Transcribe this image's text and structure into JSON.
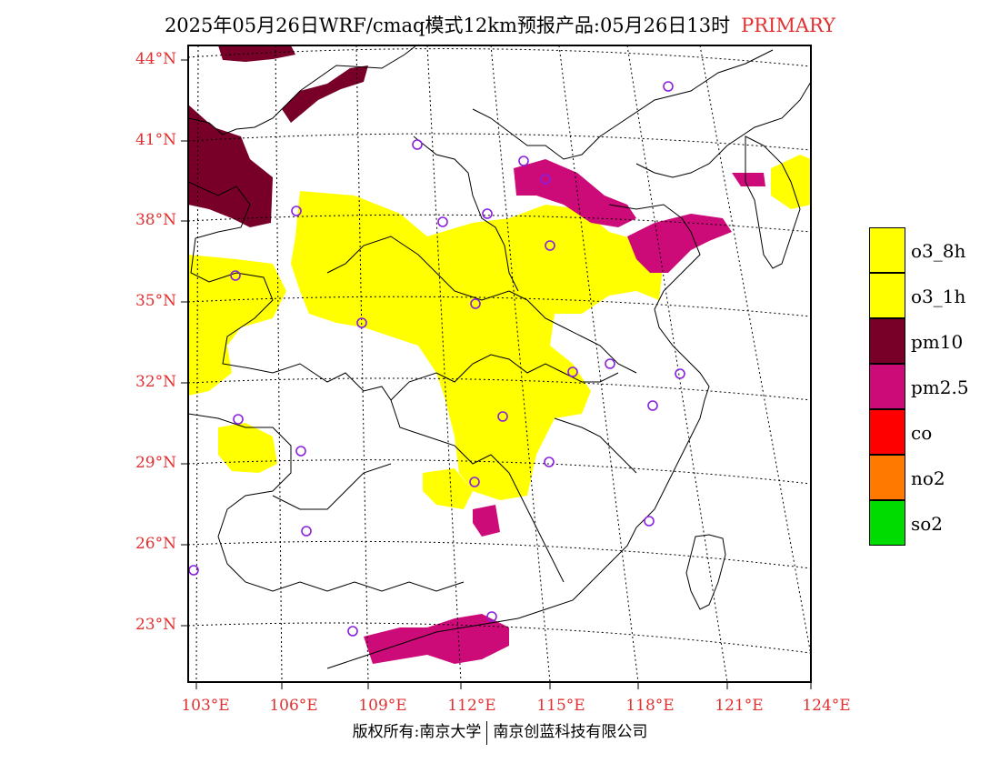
{
  "header": {
    "title": "2025年05月26日WRF/cmaq模式12km预报产品:05月26日13时",
    "mode_tag": "PRIMARY"
  },
  "axes": {
    "lat_labels": [
      "44°N",
      "41°N",
      "38°N",
      "35°N",
      "32°N",
      "29°N",
      "26°N",
      "23°N"
    ],
    "lon_labels": [
      "103°E",
      "106°E",
      "109°E",
      "112°E",
      "115°E",
      "118°E",
      "121°E",
      "124°E"
    ]
  },
  "legend": {
    "items": [
      {
        "label": "o3_8h",
        "color": "#ffff00"
      },
      {
        "label": "o3_1h",
        "color": "#ffff00"
      },
      {
        "label": "pm10",
        "color": "#780028"
      },
      {
        "label": "pm2.5",
        "color": "#cc0a78"
      },
      {
        "label": "co",
        "color": "#ff0000"
      },
      {
        "label": "no2",
        "color": "#ff7800"
      },
      {
        "label": "so2",
        "color": "#00dc00"
      }
    ]
  },
  "footer": {
    "left": "版权所有:南京大学",
    "right": "南京创蓝科技有限公司"
  }
}
